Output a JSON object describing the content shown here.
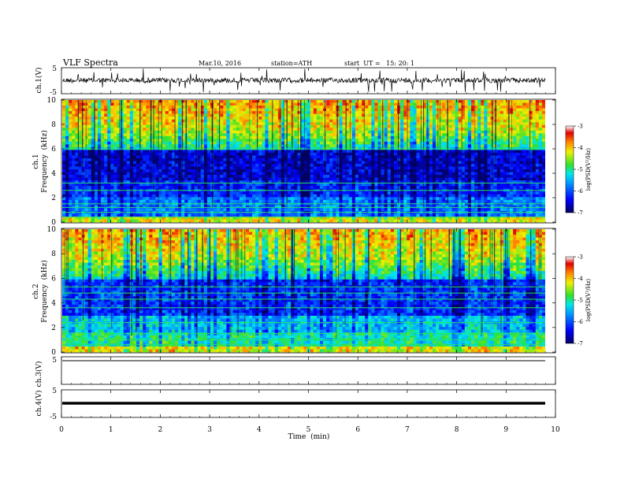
{
  "header": {
    "title": "VLF Spectra",
    "date": "Mar.10, 2016",
    "station": "station=ATH",
    "start": "start  UT =   15: 20: 1"
  },
  "colors": {
    "low": "#00007a",
    "mid": "#00e0ff",
    "high": "#c80000"
  },
  "chart_data": [
    {
      "type": "line",
      "name": "ch1-waveform",
      "ylabel": "ch.1(V)",
      "yticks": [
        "5",
        "-5"
      ],
      "ylim": [
        -5,
        5
      ]
    },
    {
      "type": "heatmap",
      "name": "ch1-spectrogram",
      "ylabel": "Frequency  (kHz)",
      "channel": "ch.1",
      "yticks": [
        "0",
        "2",
        "4",
        "6",
        "8",
        "10"
      ],
      "ylim": [
        0,
        10
      ],
      "colorbar": {
        "label": "log(PSD(V²/Hz)",
        "ticks": [
          "-3",
          "-4",
          "-5",
          "-6",
          "-7"
        ],
        "range": [
          -7,
          -3
        ]
      }
    },
    {
      "type": "heatmap",
      "name": "ch2-spectrogram",
      "ylabel": "Frequency  (kHz)",
      "channel": "ch.2",
      "yticks": [
        "0",
        "2",
        "4",
        "6",
        "8",
        "10"
      ],
      "ylim": [
        0,
        10
      ],
      "colorbar": {
        "label": "log(PSD(V²/Hz)",
        "ticks": [
          "-3",
          "-4",
          "-5",
          "-6",
          "-7"
        ],
        "range": [
          -7,
          -3
        ]
      }
    },
    {
      "type": "line",
      "name": "ch3-waveform",
      "ylabel": "ch.3(V)",
      "yticks": [
        "5"
      ],
      "ylim": [
        -5,
        5
      ]
    },
    {
      "type": "line",
      "name": "ch4-waveform",
      "ylabel": "ch.4(V)",
      "yticks": [
        "5",
        "-5"
      ],
      "ylim": [
        -5,
        5
      ]
    }
  ],
  "xaxis": {
    "label": "Time  (min)",
    "ticks": [
      "0",
      "1",
      "2",
      "3",
      "4",
      "5",
      "6",
      "7",
      "8",
      "9",
      "10"
    ],
    "range": [
      0,
      10
    ]
  }
}
